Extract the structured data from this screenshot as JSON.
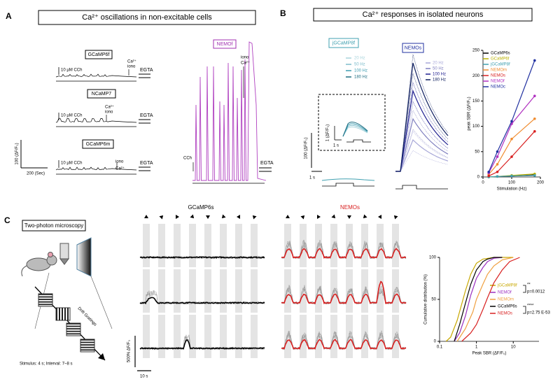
{
  "panel_labels": [
    "A",
    "B",
    "C"
  ],
  "panel_a": {
    "title": "Ca²⁺ oscillations in non-excitable cells",
    "traces": [
      {
        "name": "GCaMP6f",
        "stimulus": "10 µM CCh",
        "ion": "Ca²⁺",
        "ionophore": "iono",
        "chelator": "EGTA"
      },
      {
        "name": "NCaMP7",
        "stimulus": "10 µM CCh",
        "ion": "Ca²⁺",
        "ionophore": "iono",
        "chelator": "EGTA"
      },
      {
        "name": "GCaMP6m",
        "stimulus": "10 µM CCh",
        "ion": "Ca²⁺",
        "ionophore": "iono",
        "chelator": "EGTA"
      }
    ],
    "scale_y": "100 (ΔF/F₀)",
    "scale_x": "200 (Sec)",
    "nemof": {
      "name": "NEMOf",
      "stimulus": "CCh",
      "ion": "Ca²⁺",
      "ionophore": "iono",
      "chelator": "EGTA"
    }
  },
  "panel_b": {
    "title": "Ca²⁺ responses in isolated neurons",
    "jgcamp8f": {
      "name": "jGCaMP8f",
      "legend": [
        "20 Hz",
        "50 Hz",
        "100 Hz",
        "180 Hz"
      ],
      "inset_scale_y": "1 (ΔF/F₀)",
      "inset_scale_x": "1 s"
    },
    "scale_y": "100 (ΔF/F₀)",
    "scale_x": "1 s",
    "nemos": {
      "name": "NEMOs",
      "legend": [
        "20 Hz",
        "50 Hz",
        "100 Hz",
        "180 Hz"
      ]
    }
  },
  "panel_c": {
    "title": "Two-photon microscopy",
    "grating_label": "Drift Gratings",
    "protocol": "Stimulus: 4 s; Interval: 7~8 s",
    "groups": [
      "GCaMP6s",
      "NEMOs"
    ],
    "scale_y": "500% ΔF/F₀",
    "scale_x": "10 s"
  },
  "chart_data": [
    {
      "type": "line",
      "x_label": "Stimulation (Hz)",
      "y_label": "peak SBR (ΔF/F₀)",
      "x": [
        20,
        50,
        100,
        180
      ],
      "xlim": [
        0,
        200
      ],
      "xticks": [
        0,
        100,
        200
      ],
      "ylim": [
        0,
        250
      ],
      "yticks": [
        0,
        50,
        100,
        150,
        200,
        250
      ],
      "legend": "upper left",
      "series": [
        {
          "name": "GCaMP6s",
          "color": "#000000",
          "values": [
            0,
            1,
            2,
            4
          ]
        },
        {
          "name": "GCaMP6f",
          "color": "#b8b000",
          "values": [
            0,
            1,
            3,
            6
          ]
        },
        {
          "name": "jGCaMP8f",
          "color": "#40a0b0",
          "values": [
            0,
            1,
            2,
            3
          ]
        },
        {
          "name": "NEMOm",
          "color": "#f08c30",
          "values": [
            5,
            25,
            75,
            115
          ]
        },
        {
          "name": "NEMOs",
          "color": "#d82020",
          "values": [
            2,
            10,
            40,
            90
          ]
        },
        {
          "name": "NEMOf",
          "color": "#b030c0",
          "values": [
            8,
            40,
            105,
            160
          ]
        },
        {
          "name": "NEMOc",
          "color": "#2030a0",
          "values": [
            10,
            50,
            110,
            230
          ]
        }
      ]
    },
    {
      "type": "line",
      "x_label": "Peak SBR (ΔF/F₀)",
      "y_label": "Cumulative distribution (%)",
      "x_scale": "log",
      "xlim": [
        0.1,
        50
      ],
      "xticks": [
        0.1,
        1,
        10
      ],
      "ylim": [
        0,
        100
      ],
      "yticks": [
        0,
        50,
        100
      ],
      "legend": "lower right",
      "series": [
        {
          "name": "jGCaMP8f",
          "color": "#c8a800",
          "x": [
            0.15,
            0.2,
            0.3,
            0.5,
            0.7,
            1,
            1.5,
            3,
            10
          ],
          "values": [
            0,
            5,
            25,
            60,
            80,
            93,
            98,
            100,
            100
          ]
        },
        {
          "name": "NEMOf",
          "color": "#9b30c0",
          "x": [
            0.25,
            0.35,
            0.5,
            0.7,
            1,
            1.5,
            2,
            3,
            5
          ],
          "values": [
            0,
            10,
            30,
            55,
            75,
            88,
            95,
            99,
            100
          ]
        },
        {
          "name": "NEMOm",
          "color": "#f0a040",
          "x": [
            0.3,
            0.5,
            0.8,
            1,
            1.5,
            2,
            3,
            5,
            10
          ],
          "values": [
            0,
            15,
            35,
            50,
            68,
            80,
            90,
            97,
            100
          ]
        },
        {
          "name": "GCaMP6s",
          "color": "#000000",
          "x": [
            0.25,
            0.35,
            0.5,
            0.7,
            1,
            1.5,
            2,
            3,
            5
          ],
          "values": [
            0,
            20,
            45,
            68,
            85,
            95,
            98,
            100,
            100
          ]
        },
        {
          "name": "NEMOs",
          "color": "#d82020",
          "x": [
            0.4,
            0.7,
            1,
            1.5,
            2,
            3,
            5,
            8,
            15
          ],
          "values": [
            0,
            10,
            20,
            38,
            52,
            70,
            85,
            95,
            100
          ]
        }
      ],
      "annotations": [
        {
          "stars": "**",
          "text": "p=0.0012"
        },
        {
          "stars": "****",
          "text": "p=2.75 E-53"
        }
      ]
    }
  ]
}
